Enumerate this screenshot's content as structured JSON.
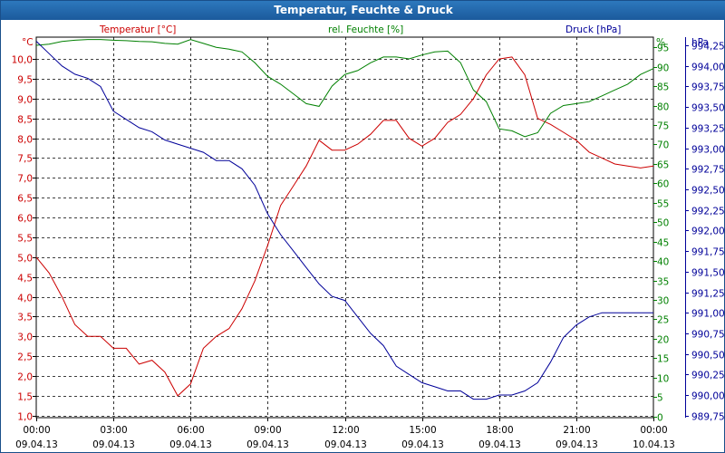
{
  "title": "Temperatur, Feuchte & Druck",
  "colors": {
    "temperature": "#cc0000",
    "humidity": "#008000",
    "pressure": "#000099",
    "titlebar": "#1f5fa3"
  },
  "chart_data": {
    "type": "line",
    "title": "Temperatur, Feuchte & Druck",
    "series_labels": {
      "temperature": "Temperatur [°C]",
      "humidity": "rel. Feuchte [%]",
      "pressure": "Druck [hPa]"
    },
    "unit_labels": {
      "temperature": "°C",
      "humidity": "%",
      "pressure": "hPa"
    },
    "x_unit": "hours since 09.04.13 00:00",
    "xlim": [
      0,
      24
    ],
    "x_ticks": [
      {
        "time": "00:00",
        "date": "09.04.13"
      },
      {
        "time": "03:00",
        "date": "09.04.13"
      },
      {
        "time": "06:00",
        "date": "09.04.13"
      },
      {
        "time": "09:00",
        "date": "09.04.13"
      },
      {
        "time": "12:00",
        "date": "09.04.13"
      },
      {
        "time": "15:00",
        "date": "09.04.13"
      },
      {
        "time": "18:00",
        "date": "09.04.13"
      },
      {
        "time": "21:00",
        "date": "09.04.13"
      },
      {
        "time": "00:00",
        "date": "10.04.13"
      }
    ],
    "axes": {
      "temperature": {
        "ylim": [
          0.95,
          10.55
        ],
        "ticks": [
          "1,0",
          "1,5",
          "2,0",
          "2,5",
          "3,0",
          "3,5",
          "4,0",
          "4,5",
          "5,0",
          "5,5",
          "6,0",
          "6,5",
          "7,0",
          "7,5",
          "8,0",
          "8,5",
          "9,0",
          "9,5",
          "10,0"
        ]
      },
      "humidity": {
        "ylim": [
          -0.3,
          97.6
        ],
        "ticks": [
          "0",
          "5",
          "10",
          "15",
          "20",
          "25",
          "30",
          "35",
          "40",
          "45",
          "50",
          "55",
          "60",
          "65",
          "70",
          "75",
          "80",
          "85",
          "90",
          "95"
        ]
      },
      "pressure": {
        "ylim": [
          989.725,
          994.35
        ],
        "ticks": [
          "989,75",
          "990,00",
          "990,25",
          "990,50",
          "990,75",
          "991,00",
          "991,25",
          "991,50",
          "991,75",
          "992,00",
          "992,25",
          "992,50",
          "992,75",
          "993,00",
          "993,25",
          "993,50",
          "993,75",
          "994,00",
          "994,25"
        ]
      }
    },
    "series": [
      {
        "name": "Temperatur",
        "key": "temperature",
        "unit": "°C",
        "x": [
          0,
          0.5,
          1,
          1.5,
          2,
          2.5,
          3,
          3.5,
          4,
          4.5,
          5,
          5.5,
          6,
          6.5,
          7,
          7.5,
          8,
          8.5,
          9,
          9.5,
          10,
          10.5,
          11,
          11.5,
          12,
          12.5,
          13,
          13.5,
          14,
          14.5,
          15,
          15.5,
          16,
          16.5,
          17,
          17.5,
          18,
          18.5,
          19,
          19.5,
          20,
          20.5,
          21,
          21.5,
          22,
          22.5,
          23,
          23.5,
          24
        ],
        "values": [
          5.0,
          4.6,
          4.0,
          3.3,
          3.0,
          3.0,
          2.7,
          2.7,
          2.3,
          2.4,
          2.1,
          1.5,
          1.8,
          2.7,
          3.0,
          3.2,
          3.7,
          4.4,
          5.3,
          6.3,
          6.8,
          7.3,
          7.95,
          7.7,
          7.7,
          7.85,
          8.1,
          8.45,
          8.45,
          8.0,
          7.8,
          8.0,
          8.4,
          8.6,
          9.0,
          9.6,
          10.0,
          10.05,
          9.6,
          8.5,
          8.35,
          8.15,
          7.95,
          7.65,
          7.5,
          7.35,
          7.3,
          7.25,
          7.3
        ]
      },
      {
        "name": "rel. Feuchte",
        "key": "humidity",
        "unit": "%",
        "x": [
          0,
          0.5,
          1,
          1.5,
          2,
          2.5,
          3,
          3.5,
          4,
          4.5,
          5,
          5.5,
          6,
          6.5,
          7,
          7.5,
          8,
          8.5,
          9,
          9.5,
          10,
          10.5,
          11,
          11.5,
          12,
          12.5,
          13,
          13.5,
          14,
          14.5,
          15,
          15.5,
          16,
          16.5,
          17,
          17.5,
          18,
          18.5,
          19,
          19.5,
          20,
          20.5,
          21,
          21.5,
          22,
          22.5,
          23,
          23.5,
          24
        ],
        "values": [
          95.5,
          95.8,
          96.5,
          96.8,
          97.0,
          97.0,
          96.8,
          96.7,
          96.5,
          96.4,
          96.0,
          95.8,
          97.0,
          96.0,
          95.0,
          94.5,
          93.8,
          91.0,
          87.5,
          85.5,
          83.0,
          80.5,
          79.8,
          85.0,
          88.0,
          89.0,
          91.0,
          92.5,
          92.5,
          92.0,
          93.0,
          93.8,
          94.0,
          91.0,
          84.0,
          81.0,
          74.0,
          73.5,
          72.0,
          73.0,
          78.0,
          80.0,
          80.5,
          81.0,
          82.5,
          84.0,
          85.5,
          88.0,
          89.5
        ]
      },
      {
        "name": "Druck",
        "key": "pressure",
        "unit": "hPa",
        "x": [
          0,
          0.5,
          1,
          1.5,
          2,
          2.5,
          3,
          3.5,
          4,
          4.5,
          5,
          5.5,
          6,
          6.5,
          7,
          7.5,
          8,
          8.5,
          9,
          9.5,
          10,
          10.5,
          11,
          11.5,
          12,
          12.5,
          13,
          13.5,
          14,
          14.5,
          15,
          15.5,
          16,
          16.5,
          17,
          17.5,
          18,
          18.5,
          19,
          19.5,
          20,
          20.5,
          21,
          21.5,
          22,
          22.5,
          23,
          23.5,
          24
        ],
        "values": [
          994.3,
          994.15,
          994.0,
          993.9,
          993.85,
          993.75,
          993.45,
          993.35,
          993.25,
          993.2,
          993.1,
          993.05,
          993.0,
          992.95,
          992.85,
          992.85,
          992.75,
          992.55,
          992.2,
          991.95,
          991.75,
          991.55,
          991.35,
          991.2,
          991.15,
          990.95,
          990.75,
          990.6,
          990.35,
          990.25,
          990.15,
          990.1,
          990.05,
          990.05,
          989.95,
          989.95,
          990.0,
          990.0,
          990.05,
          990.15,
          990.4,
          990.7,
          990.85,
          990.95,
          991.0,
          991.0,
          991.0,
          991.0,
          991.0
        ]
      }
    ]
  }
}
